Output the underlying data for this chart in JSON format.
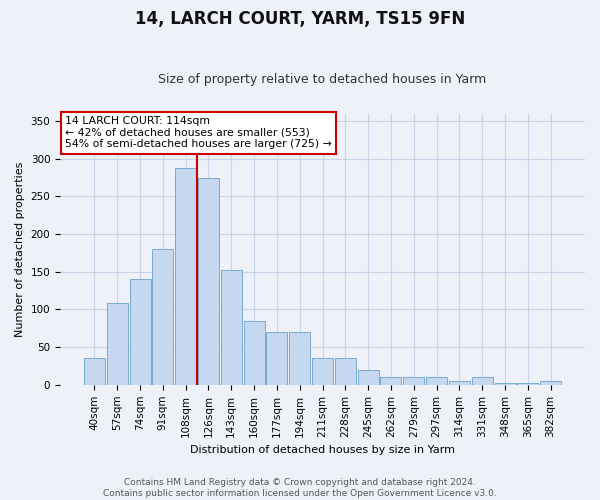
{
  "title": "14, LARCH COURT, YARM, TS15 9FN",
  "subtitle": "Size of property relative to detached houses in Yarm",
  "xlabel": "Distribution of detached houses by size in Yarm",
  "ylabel": "Number of detached properties",
  "categories": [
    "40sqm",
    "57sqm",
    "74sqm",
    "91sqm",
    "108sqm",
    "126sqm",
    "143sqm",
    "160sqm",
    "177sqm",
    "194sqm",
    "211sqm",
    "228sqm",
    "245sqm",
    "262sqm",
    "279sqm",
    "297sqm",
    "314sqm",
    "331sqm",
    "348sqm",
    "365sqm",
    "382sqm"
  ],
  "values": [
    35,
    108,
    140,
    180,
    288,
    275,
    152,
    85,
    70,
    70,
    35,
    35,
    20,
    10,
    10,
    10,
    5,
    10,
    2,
    2,
    5
  ],
  "bar_color": "#c5d8f0",
  "bar_edge_color": "#7aaad0",
  "vline_x": 4.5,
  "vline_color": "#cc0000",
  "annotation_text": "14 LARCH COURT: 114sqm\n← 42% of detached houses are smaller (553)\n54% of semi-detached houses are larger (725) →",
  "annotation_box_color": "#ffffff",
  "annotation_box_edge_color": "#cc0000",
  "ylim": [
    0,
    360
  ],
  "yticks": [
    0,
    50,
    100,
    150,
    200,
    250,
    300,
    350
  ],
  "footer": "Contains HM Land Registry data © Crown copyright and database right 2024.\nContains public sector information licensed under the Open Government Licence v3.0.",
  "bg_color": "#eef2f8",
  "title_fontsize": 12,
  "subtitle_fontsize": 9,
  "axis_label_fontsize": 8,
  "tick_fontsize": 7.5,
  "footer_fontsize": 6.5
}
